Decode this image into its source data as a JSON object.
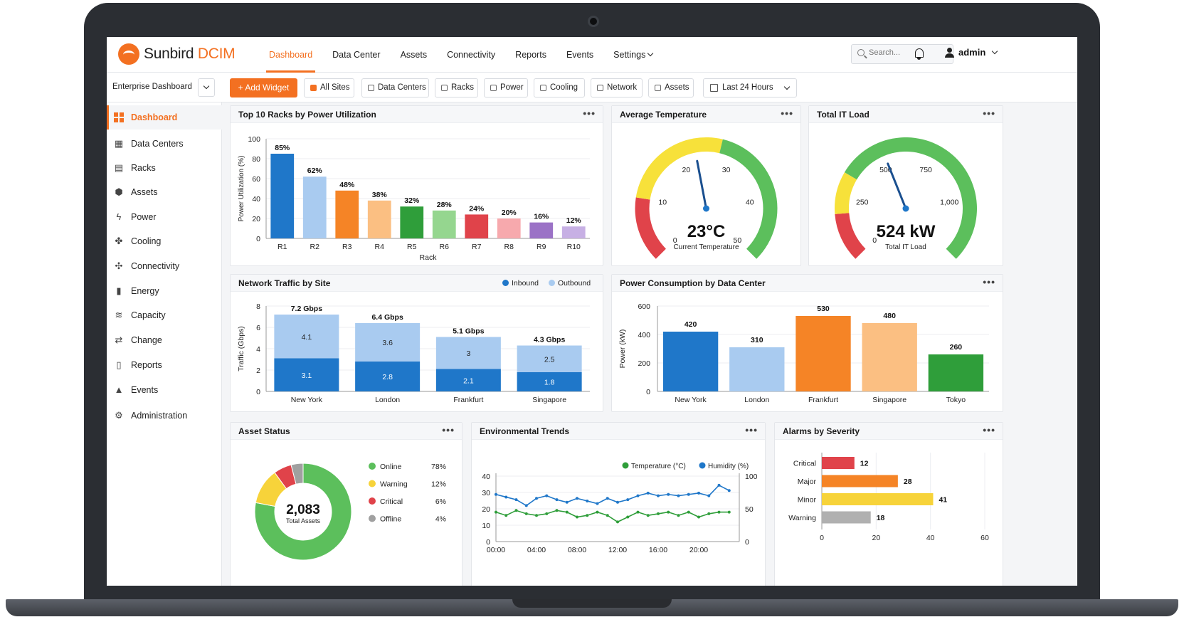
{
  "colors": {
    "accent": "#f37021",
    "blue": "#1f77c9",
    "lightblue": "#a9cbf0",
    "green": "#2f9e3a",
    "lightgreen": "#95d68f",
    "red": "#e0434a",
    "pink": "#f7a9ad",
    "purple": "#9b72c6",
    "lavender": "#c7b0e4",
    "orange": "#f58426",
    "peach": "#fbbf82",
    "yellow": "#f7d33a",
    "gray": "#b0b0b0"
  },
  "brand": {
    "name": "Sunbird",
    "product": "DCIM"
  },
  "nav": {
    "items": [
      "Dashboard",
      "Data Center",
      "Assets",
      "Connectivity",
      "Reports",
      "Events",
      "Settings"
    ],
    "active": "Dashboard"
  },
  "search": {
    "placeholder": "Search..."
  },
  "user": {
    "name": "admin"
  },
  "toolbar": {
    "dashboard_name": "Enterprise Dashboard",
    "add_widget": "+ Add Widget",
    "filters": [
      "All Sites",
      "Data Centers",
      "Racks",
      "Power",
      "Cooling",
      "Network",
      "Assets"
    ],
    "time_range": "Last 24 Hours"
  },
  "sidebar": {
    "items": [
      {
        "label": "Dashboard",
        "icon": "grid-icon"
      },
      {
        "label": "Data Centers",
        "icon": "building-icon"
      },
      {
        "label": "Racks",
        "icon": "rack-icon"
      },
      {
        "label": "Assets",
        "icon": "cube-icon"
      },
      {
        "label": "Power",
        "icon": "bolt-icon"
      },
      {
        "label": "Cooling",
        "icon": "fan-icon"
      },
      {
        "label": "Connectivity",
        "icon": "network-icon"
      },
      {
        "label": "Energy",
        "icon": "bar-chart-icon"
      },
      {
        "label": "Capacity",
        "icon": "database-icon"
      },
      {
        "label": "Change",
        "icon": "swap-icon"
      },
      {
        "label": "Reports",
        "icon": "document-icon"
      },
      {
        "label": "Events",
        "icon": "bell-icon"
      },
      {
        "label": "Administration",
        "icon": "gear-icon"
      }
    ]
  },
  "chart_data": [
    {
      "id": "racks",
      "type": "bar",
      "title": "Top 10 Racks by Power Utilization",
      "xlabel": "Rack",
      "ylabel": "Power Utilization (%)",
      "ylim": [
        0,
        100
      ],
      "yticks": [
        0,
        20,
        40,
        60,
        80,
        100
      ],
      "categories": [
        "R1",
        "R2",
        "R3",
        "R4",
        "R5",
        "R6",
        "R7",
        "R8",
        "R9",
        "R10"
      ],
      "values": [
        85,
        62,
        48,
        38,
        32,
        28,
        24,
        20,
        16,
        12
      ],
      "labels": [
        "85%",
        "62%",
        "48%",
        "38%",
        "32%",
        "28%",
        "24%",
        "20%",
        "16%",
        "12%"
      ],
      "colors": [
        "#1f77c9",
        "#a9cbf0",
        "#f58426",
        "#fbbf82",
        "#2f9e3a",
        "#95d68f",
        "#e0434a",
        "#f7a9ad",
        "#9b72c6",
        "#c7b0e4"
      ]
    },
    {
      "id": "temp",
      "type": "gauge",
      "title": "Average Temperature",
      "value": 23,
      "min": 0,
      "max": 50,
      "ticks": [
        "0",
        "10",
        "20",
        "30",
        "40",
        "50"
      ],
      "display": "23°C",
      "caption": "Current Temperature"
    },
    {
      "id": "load",
      "type": "gauge",
      "title": "Total IT Load",
      "value": 524,
      "min": 0,
      "max": 1250,
      "ticks": [
        "0",
        "250",
        "500",
        "750",
        "1,000"
      ],
      "display": "524 kW",
      "caption": "Total IT Load"
    },
    {
      "id": "traffic",
      "type": "bar",
      "stacked": true,
      "title": "Network Traffic by Site",
      "ylabel": "Traffic (Gbps)",
      "ylim": [
        0,
        8
      ],
      "yticks": [
        0,
        2,
        4,
        6,
        8
      ],
      "categories": [
        "New York",
        "London",
        "Frankfurt",
        "Singapore"
      ],
      "totals": [
        "7.2 Gbps",
        "6.4 Gbps",
        "5.1 Gbps",
        "4.3 Gbps"
      ],
      "series": [
        {
          "name": "Inbound",
          "values": [
            3.1,
            2.8,
            2.1,
            1.8
          ],
          "color": "#1f77c9"
        },
        {
          "name": "Outbound",
          "values": [
            4.1,
            3.6,
            3.0,
            2.5
          ],
          "color": "#a9cbf0"
        }
      ]
    },
    {
      "id": "power",
      "type": "bar",
      "title": "Power Consumption by Data Center",
      "ylabel": "Power (kW)",
      "ylim": [
        0,
        600
      ],
      "yticks": [
        0,
        200,
        400,
        600
      ],
      "categories": [
        "New York",
        "London",
        "Frankfurt",
        "Singapore",
        "Tokyo"
      ],
      "values": [
        420,
        310,
        530,
        480,
        260
      ],
      "colors": [
        "#1f77c9",
        "#a9cbf0",
        "#f58426",
        "#fbbf82",
        "#2f9e3a"
      ]
    },
    {
      "id": "assets",
      "type": "pie",
      "title": "Asset Status",
      "center_value": "2,083",
      "center_label": "Total Assets",
      "slices": [
        {
          "name": "Online",
          "value": 78,
          "label": "78%",
          "color": "#5cbf5c"
        },
        {
          "name": "Warning",
          "value": 12,
          "label": "12%",
          "color": "#f7d33a"
        },
        {
          "name": "Critical",
          "value": 6,
          "label": "6%",
          "color": "#e0434a"
        },
        {
          "name": "Offline",
          "value": 4,
          "label": "4%",
          "color": "#a0a0a0"
        }
      ]
    },
    {
      "id": "env",
      "type": "line",
      "title": "Environmental Trends",
      "x_ticks": [
        "00:00",
        "04:00",
        "08:00",
        "12:00",
        "16:00",
        "20:00"
      ],
      "x_range": [
        0,
        24
      ],
      "y_left": [
        0,
        10,
        20,
        30,
        40
      ],
      "y_right": [
        0,
        50,
        100
      ],
      "series": [
        {
          "name": "Temperature (°C)",
          "axis": "left",
          "color": "#2f9e3a",
          "x": [
            0,
            1,
            2,
            3,
            4,
            5,
            6,
            7,
            8,
            9,
            10,
            11,
            12,
            13,
            14,
            15,
            16,
            17,
            18,
            19,
            20,
            21,
            22,
            23
          ],
          "y": [
            18,
            16,
            19,
            17,
            16,
            17,
            19,
            18,
            15,
            16,
            18,
            16,
            12,
            15,
            18,
            16,
            17,
            18,
            16,
            18,
            15,
            17,
            18,
            18
          ]
        },
        {
          "name": "Humidity (%)",
          "axis": "right",
          "color": "#1f77c9",
          "x": [
            0,
            1,
            2,
            3,
            4,
            5,
            6,
            7,
            8,
            9,
            10,
            11,
            12,
            13,
            14,
            15,
            16,
            17,
            18,
            19,
            20,
            21,
            22,
            23
          ],
          "y": [
            72,
            68,
            64,
            55,
            66,
            70,
            64,
            60,
            66,
            62,
            58,
            66,
            60,
            64,
            70,
            74,
            70,
            72,
            70,
            72,
            74,
            70,
            86,
            78
          ]
        }
      ]
    },
    {
      "id": "alarms",
      "type": "bar",
      "horizontal": true,
      "title": "Alarms by Severity",
      "categories": [
        "Critical",
        "Major",
        "Minor",
        "Warning"
      ],
      "values": [
        12,
        28,
        41,
        18
      ],
      "colors": [
        "#e0434a",
        "#f58426",
        "#f7d33a",
        "#b0b0b0"
      ],
      "xlim": [
        0,
        60
      ],
      "xticks": [
        0,
        20,
        40,
        60
      ]
    }
  ]
}
